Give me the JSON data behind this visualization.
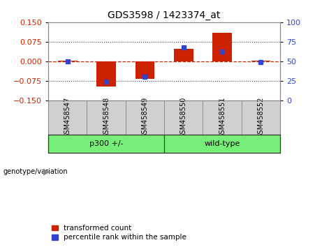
{
  "title": "GDS3598 / 1423374_at",
  "samples": [
    "GSM458547",
    "GSM458548",
    "GSM458549",
    "GSM458550",
    "GSM458551",
    "GSM458552"
  ],
  "transformed_counts": [
    0.002,
    -0.097,
    -0.068,
    0.048,
    0.108,
    0.002
  ],
  "percentile_ranks": [
    50,
    24,
    30,
    68,
    62,
    49
  ],
  "group_defs": [
    {
      "label": "p300 +/-",
      "start": 0,
      "end": 2
    },
    {
      "label": "wild-type",
      "start": 3,
      "end": 5
    }
  ],
  "ylim_left": [
    -0.15,
    0.15
  ],
  "ylim_right": [
    0,
    100
  ],
  "yticks_left": [
    -0.15,
    -0.075,
    0,
    0.075,
    0.15
  ],
  "yticks_right": [
    0,
    25,
    50,
    75,
    100
  ],
  "bar_color": "#cc2200",
  "dot_color": "#3344cc",
  "hline_color": "#cc2200",
  "grid_color": "#444444",
  "group_color": "#77ee77",
  "label_bg": "#cccccc",
  "legend_items": [
    "transformed count",
    "percentile rank within the sample"
  ]
}
